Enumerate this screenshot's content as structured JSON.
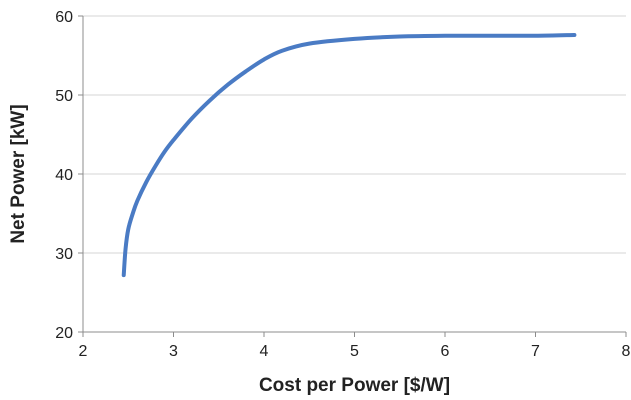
{
  "chart_data": {
    "type": "line",
    "title": "",
    "xlabel": "Cost per Power [$/W]",
    "ylabel": "Net Power [kW]",
    "xlim": [
      2,
      8
    ],
    "ylim": [
      20,
      60
    ],
    "xticks": [
      2,
      3,
      4,
      5,
      6,
      7,
      8
    ],
    "yticks": [
      20,
      30,
      40,
      50,
      60
    ],
    "grid": {
      "horizontal": true,
      "vertical": false
    },
    "legend": "none",
    "series": [
      {
        "color": "#4a7bc4",
        "x": [
          2.45,
          2.47,
          2.5,
          2.55,
          2.6,
          2.7,
          2.8,
          2.9,
          3.0,
          3.2,
          3.4,
          3.6,
          3.8,
          4.0,
          4.2,
          4.5,
          5.0,
          5.5,
          6.0,
          6.5,
          7.0,
          7.43
        ],
        "y": [
          27.2,
          30.5,
          33.0,
          35.0,
          36.6,
          39.0,
          41.0,
          42.8,
          44.3,
          47.0,
          49.3,
          51.3,
          53.0,
          54.5,
          55.6,
          56.5,
          57.1,
          57.4,
          57.5,
          57.5,
          57.5,
          57.6
        ]
      }
    ]
  }
}
